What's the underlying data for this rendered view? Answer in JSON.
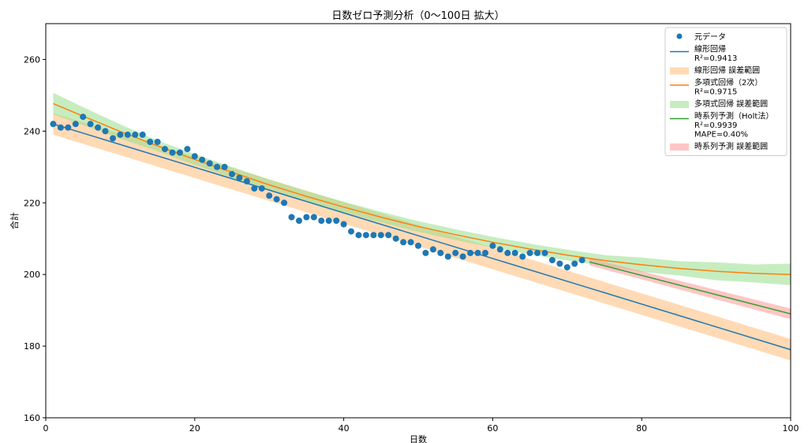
{
  "chart_data": {
    "type": "scatter",
    "title": "日数ゼロ予測分析（0〜100日 拡大）",
    "xlabel": "日数",
    "ylabel": "合計",
    "xlim": [
      0,
      100
    ],
    "ylim": [
      160,
      270
    ],
    "xticks": [
      0,
      20,
      40,
      60,
      80,
      100
    ],
    "yticks": [
      160,
      180,
      200,
      220,
      240,
      260
    ],
    "grid": false,
    "legend_position": "top-right",
    "colors": {
      "data": "#1f77b4",
      "linear": "#1f77b4",
      "linear_band": "#ffbb78",
      "poly": "#ff7f0e",
      "poly_band": "#98df8a",
      "holt": "#2ca02c",
      "holt_band": "#ff9896"
    },
    "legend": [
      {
        "kind": "marker",
        "color": "#1f77b4",
        "lines": [
          "元データ"
        ]
      },
      {
        "kind": "line",
        "color": "#1f77b4",
        "lines": [
          "線形回帰",
          "R²=0.9413"
        ]
      },
      {
        "kind": "patch",
        "color": "#ffbb78",
        "lines": [
          "線形回帰 誤差範囲"
        ]
      },
      {
        "kind": "line",
        "color": "#ff7f0e",
        "lines": [
          "多項式回帰（2次）",
          "R²=0.9715"
        ]
      },
      {
        "kind": "patch",
        "color": "#98df8a",
        "lines": [
          "多項式回帰 誤差範囲"
        ]
      },
      {
        "kind": "line",
        "color": "#2ca02c",
        "lines": [
          "時系列予測（Holt法）",
          "R²=0.9939",
          "MAPE=0.40%"
        ]
      },
      {
        "kind": "patch",
        "color": "#ff9896",
        "lines": [
          "時系列予測 誤差範囲"
        ]
      }
    ],
    "series": [
      {
        "name": "元データ",
        "kind": "scatter",
        "x": [
          1,
          2,
          3,
          4,
          5,
          6,
          7,
          8,
          9,
          10,
          11,
          12,
          13,
          14,
          15,
          16,
          17,
          18,
          19,
          20,
          21,
          22,
          23,
          24,
          25,
          26,
          27,
          28,
          29,
          30,
          31,
          32,
          33,
          34,
          35,
          36,
          37,
          38,
          39,
          40,
          41,
          42,
          43,
          44,
          45,
          46,
          47,
          48,
          49,
          50,
          51,
          52,
          53,
          54,
          55,
          56,
          57,
          58,
          59,
          60,
          61,
          62,
          63,
          64,
          65,
          66,
          67,
          68,
          69,
          70,
          71,
          72
        ],
        "y": [
          242,
          241,
          241,
          242,
          244,
          242,
          241,
          240,
          238,
          239,
          239,
          239,
          239,
          237,
          237,
          235,
          234,
          234,
          235,
          233,
          232,
          231,
          230,
          230,
          228,
          227,
          226,
          224,
          224,
          222,
          221,
          220,
          216,
          215,
          216,
          216,
          215,
          215,
          215,
          214,
          212,
          211,
          211,
          211,
          211,
          211,
          210,
          209,
          209,
          208,
          206,
          207,
          206,
          205,
          206,
          205,
          206,
          206,
          206,
          208,
          207,
          206,
          206,
          205,
          206,
          206,
          206,
          204,
          203,
          202,
          203,
          204
        ]
      },
      {
        "name": "線形回帰",
        "kind": "line",
        "x": [
          1,
          100
        ],
        "y": [
          242.0,
          179.0
        ],
        "band": {
          "lower": [
            239.0,
            176.0
          ],
          "upper": [
            245.0,
            182.0
          ]
        }
      },
      {
        "name": "多項式回帰（2次）",
        "kind": "line",
        "x": [
          1,
          5,
          10,
          15,
          20,
          25,
          30,
          35,
          40,
          45,
          50,
          55,
          60,
          65,
          70,
          75,
          80,
          85,
          90,
          95,
          100
        ],
        "y": [
          247.7,
          244.2,
          239.9,
          235.9,
          232.1,
          228.5,
          225.0,
          221.8,
          218.8,
          216.0,
          213.4,
          211.1,
          209.0,
          207.1,
          205.4,
          203.9,
          202.7,
          201.7,
          200.9,
          200.3,
          200.0
        ],
        "band": {
          "lower": [
            244.7,
            241.7,
            237.9,
            234.4,
            230.6,
            227.0,
            223.5,
            220.3,
            217.3,
            214.5,
            211.9,
            209.6,
            207.5,
            205.6,
            203.9,
            202.4,
            200.7,
            199.7,
            198.4,
            197.8,
            197.0
          ],
          "upper": [
            250.7,
            246.7,
            241.9,
            237.4,
            233.6,
            230.0,
            226.5,
            223.3,
            220.3,
            217.5,
            214.9,
            212.6,
            210.5,
            208.6,
            206.9,
            205.4,
            204.7,
            203.7,
            203.4,
            202.8,
            203.0
          ]
        }
      },
      {
        "name": "時系列予測（Holt法）",
        "kind": "line",
        "x": [
          73,
          100
        ],
        "y": [
          203.5,
          189.0
        ],
        "band": {
          "lower": [
            202.5,
            187.5
          ],
          "upper": [
            204.5,
            190.5
          ]
        }
      }
    ]
  }
}
